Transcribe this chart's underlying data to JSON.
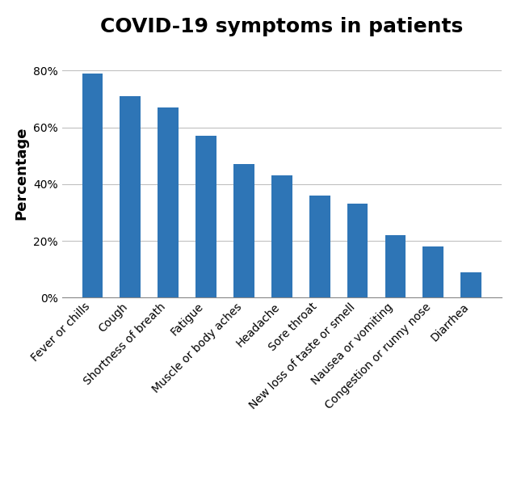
{
  "title": "COVID-19 symptoms in patients",
  "title_fontsize": 18,
  "title_fontweight": "bold",
  "ylabel": "Percentage",
  "ylabel_fontsize": 13,
  "ylabel_fontweight": "bold",
  "categories": [
    "Fever or chills",
    "Cough",
    "Shortness of breath",
    "Fatigue",
    "Muscle or body aches",
    "Headache",
    "Sore throat",
    "New loss of taste or smell",
    "Nausea or vomiting",
    "Congestion or runny nose",
    "Diarrhea"
  ],
  "values": [
    79,
    71,
    67,
    57,
    47,
    43,
    36,
    33,
    22,
    18,
    9
  ],
  "bar_color": "#2E75B6",
  "ylim": [
    0,
    88
  ],
  "yticks": [
    0,
    20,
    40,
    60,
    80
  ],
  "ytick_labels": [
    "0%",
    "20%",
    "40%",
    "60%",
    "80%"
  ],
  "grid_color": "#C0C0C0",
  "background_color": "#FFFFFF",
  "tick_fontsize": 10,
  "xtick_rotation": 45,
  "xtick_ha": "right",
  "bar_width": 0.55
}
